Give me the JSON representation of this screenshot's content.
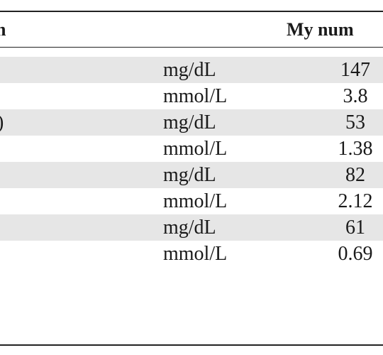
{
  "header": {
    "left_label": "n",
    "right_label": "My num"
  },
  "rows": [
    {
      "label": "",
      "unit": "mg/dL",
      "value": "147",
      "shaded": true
    },
    {
      "label": "",
      "unit": "mmol/L",
      "value": "3.8",
      "shaded": false
    },
    {
      "label": ")",
      "unit": "mg/dL",
      "value": "53",
      "shaded": true
    },
    {
      "label": "",
      "unit": "mmol/L",
      "value": "1.38",
      "shaded": false
    },
    {
      "label": "",
      "unit": "mg/dL",
      "value": "82",
      "shaded": true
    },
    {
      "label": "",
      "unit": "mmol/L",
      "value": "2.12",
      "shaded": false
    },
    {
      "label": "",
      "unit": "mg/dL",
      "value": "61",
      "shaded": true
    },
    {
      "label": "",
      "unit": "mmol/L",
      "value": "0.69",
      "shaded": false
    }
  ]
}
